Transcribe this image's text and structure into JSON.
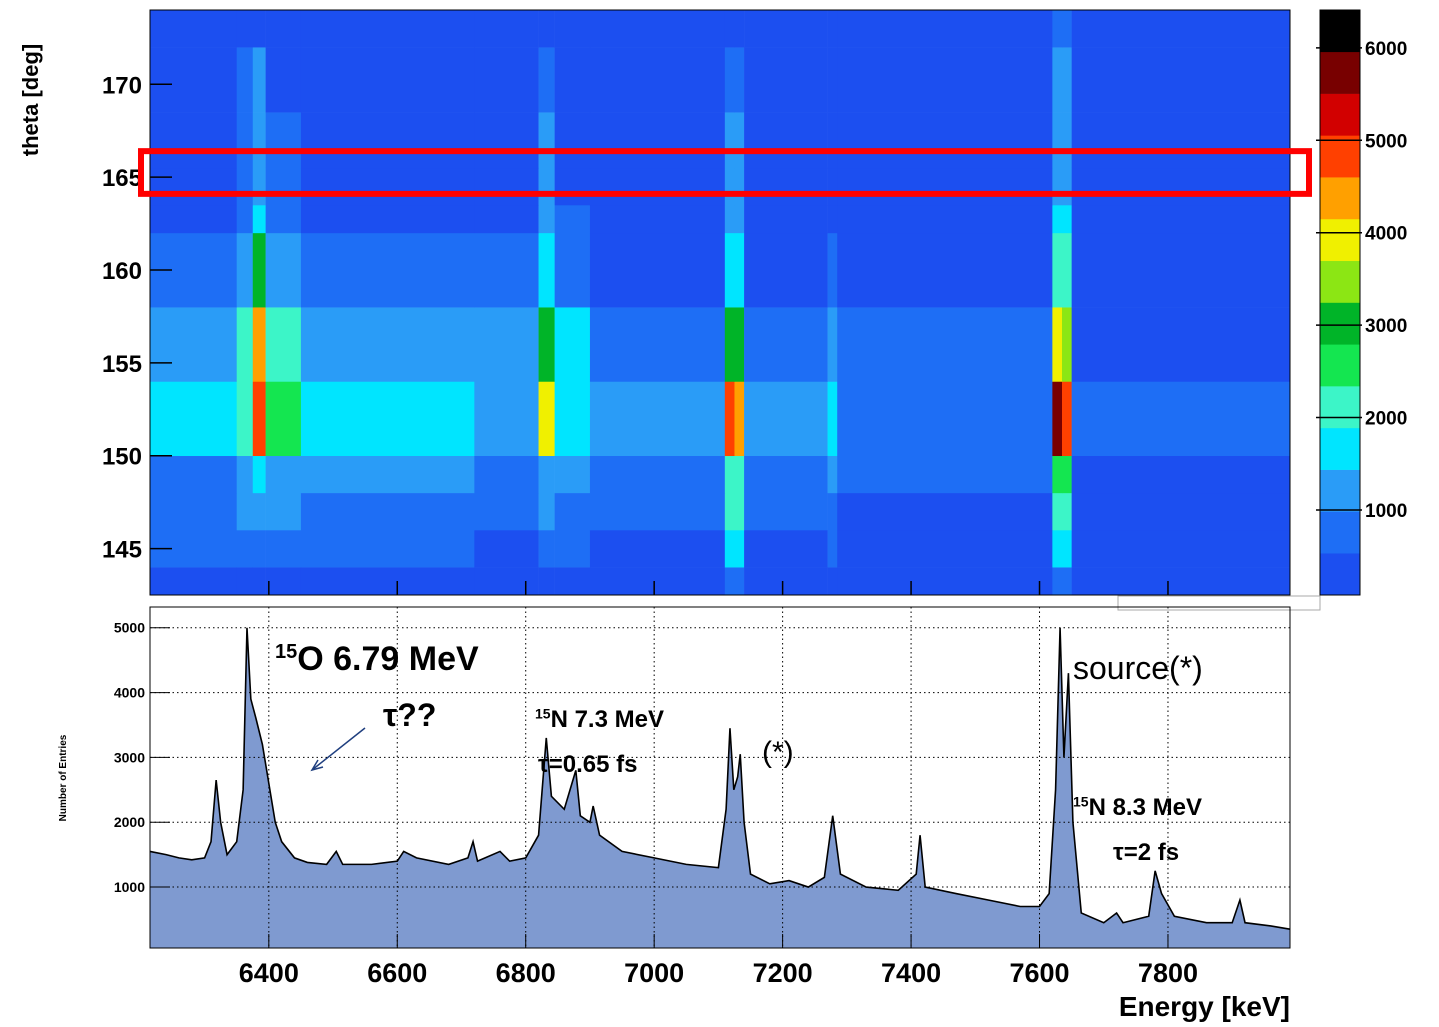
{
  "chart_data": [
    {
      "type": "heatmap",
      "ylabel": "theta [deg]",
      "x_edges": [
        6215,
        6350,
        6375,
        6395,
        6450,
        6720,
        6820,
        6845,
        6900,
        7110,
        7125,
        7140,
        7270,
        7285,
        7620,
        7635,
        7650,
        7990
      ],
      "y_edges": [
        142.5,
        144,
        146,
        148,
        150,
        154,
        158,
        162,
        163.5,
        165.5,
        168.5,
        172,
        174
      ],
      "z": [
        [
          300,
          300,
          400,
          300,
          300,
          300,
          400,
          300,
          300,
          900,
          900,
          300,
          400,
          250,
          900,
          900,
          200
        ],
        [
          600,
          700,
          900,
          700,
          600,
          500,
          800,
          600,
          500,
          1500,
          1500,
          500,
          700,
          400,
          1500,
          1500,
          300
        ],
        [
          800,
          1000,
          1300,
          1100,
          900,
          800,
          1200,
          900,
          800,
          2000,
          2000,
          700,
          900,
          500,
          2200,
          2200,
          400
        ],
        [
          900,
          1200,
          1500,
          1200,
          1000,
          900,
          1400,
          1000,
          900,
          2200,
          2200,
          800,
          1000,
          600,
          2500,
          2500,
          500
        ],
        [
          1500,
          2200,
          4800,
          2500,
          1500,
          1300,
          3800,
          1800,
          1200,
          4800,
          4500,
          1200,
          1500,
          900,
          5800,
          5000,
          700
        ],
        [
          1300,
          2000,
          4200,
          2200,
          1300,
          1100,
          3200,
          1500,
          700,
          3000,
          2800,
          700,
          1000,
          600,
          3800,
          3500,
          500
        ],
        [
          700,
          1200,
          2800,
          1300,
          700,
          600,
          1800,
          900,
          500,
          1800,
          1800,
          500,
          700,
          400,
          2000,
          2000,
          400
        ],
        [
          500,
          800,
          1800,
          800,
          500,
          400,
          1300,
          600,
          400,
          1300,
          1300,
          400,
          500,
          300,
          1500,
          1500,
          300
        ],
        [
          400,
          700,
          1400,
          600,
          400,
          350,
          1100,
          500,
          350,
          1000,
          1000,
          350,
          450,
          250,
          1300,
          1300,
          250
        ],
        [
          500,
          800,
          1300,
          600,
          500,
          400,
          1100,
          500,
          400,
          1000,
          1000,
          350,
          450,
          250,
          1300,
          1300,
          250
        ],
        [
          450,
          600,
          1000,
          500,
          450,
          400,
          900,
          450,
          300,
          800,
          800,
          300,
          400,
          250,
          1000,
          1000,
          250
        ],
        [
          250,
          300,
          500,
          300,
          250,
          250,
          500,
          250,
          250,
          500,
          500,
          250,
          250,
          250,
          600,
          600,
          250
        ]
      ],
      "xlim": [
        6215,
        7990
      ],
      "ylim": [
        142.5,
        174
      ],
      "yticks": [
        145,
        150,
        155,
        160,
        165,
        170
      ],
      "zlim": [
        80,
        6410
      ],
      "zticks": [
        1000,
        2000,
        3000,
        4000,
        5000,
        6000
      ],
      "palette": [
        "#1c4ff0",
        "#1e6ef5",
        "#2a9cf7",
        "#00e5ff",
        "#3cf5c8",
        "#14e650",
        "#00b428",
        "#8ce614",
        "#f0f000",
        "#ffa000",
        "#ff4000",
        "#d20000",
        "#780000",
        "#000000"
      ],
      "highlight_band": [
        164.1,
        166.4
      ],
      "highlight_color": "#ff0000"
    },
    {
      "type": "area",
      "xlabel": "Energy [keV]",
      "ylabel": "Number of Entries",
      "color": "#7f9ad0",
      "line_color": "#000000",
      "grid": true,
      "x": [
        6215,
        6240,
        6260,
        6280,
        6300,
        6310,
        6318,
        6325,
        6335,
        6350,
        6360,
        6366,
        6372,
        6380,
        6390,
        6400,
        6410,
        6420,
        6440,
        6460,
        6490,
        6505,
        6515,
        6560,
        6600,
        6610,
        6630,
        6680,
        6710,
        6718,
        6725,
        6760,
        6775,
        6800,
        6820,
        6832,
        6840,
        6860,
        6878,
        6885,
        6900,
        6905,
        6915,
        6950,
        7000,
        7050,
        7100,
        7112,
        7118,
        7124,
        7130,
        7134,
        7140,
        7150,
        7180,
        7210,
        7240,
        7265,
        7278,
        7290,
        7330,
        7380,
        7408,
        7414,
        7422,
        7470,
        7520,
        7570,
        7600,
        7615,
        7625,
        7632,
        7638,
        7645,
        7652,
        7665,
        7700,
        7720,
        7730,
        7770,
        7780,
        7790,
        7810,
        7860,
        7900,
        7912,
        7920,
        7960,
        7990
      ],
      "values": [
        1550,
        1500,
        1450,
        1420,
        1450,
        1700,
        2650,
        2000,
        1500,
        1700,
        2500,
        5000,
        3900,
        3600,
        3200,
        2600,
        2000,
        1700,
        1450,
        1380,
        1350,
        1550,
        1350,
        1350,
        1400,
        1550,
        1450,
        1350,
        1450,
        1700,
        1400,
        1550,
        1400,
        1450,
        1800,
        3300,
        2400,
        2200,
        2800,
        2100,
        2000,
        2250,
        1800,
        1550,
        1450,
        1350,
        1300,
        2200,
        3450,
        2500,
        2700,
        3050,
        2000,
        1200,
        1050,
        1100,
        1000,
        1150,
        2100,
        1200,
        1000,
        950,
        1200,
        1800,
        1000,
        900,
        800,
        700,
        700,
        900,
        2500,
        5000,
        3000,
        4300,
        2000,
        600,
        450,
        600,
        450,
        550,
        1250,
        900,
        550,
        450,
        450,
        800,
        450,
        400,
        350
      ],
      "xlim": [
        6215,
        7990
      ],
      "ylim": [
        60,
        5320
      ],
      "xticks": [
        6400,
        6600,
        6800,
        7000,
        7200,
        7400,
        7600,
        7800
      ],
      "yticks": [
        1000,
        2000,
        3000,
        4000,
        5000
      ],
      "annotations": [
        {
          "sup": "15",
          "text": "O 6.79 MeV"
        },
        {
          "text": "τ??"
        },
        {
          "sup": "15",
          "text": "N 7.3 MeV"
        },
        {
          "text": "τ=0.65 fs"
        },
        {
          "text": "(*)"
        },
        {
          "text": "source(*)"
        },
        {
          "sup": "15",
          "text": "N 8.3 MeV"
        },
        {
          "text": "τ=2 fs"
        }
      ]
    }
  ]
}
